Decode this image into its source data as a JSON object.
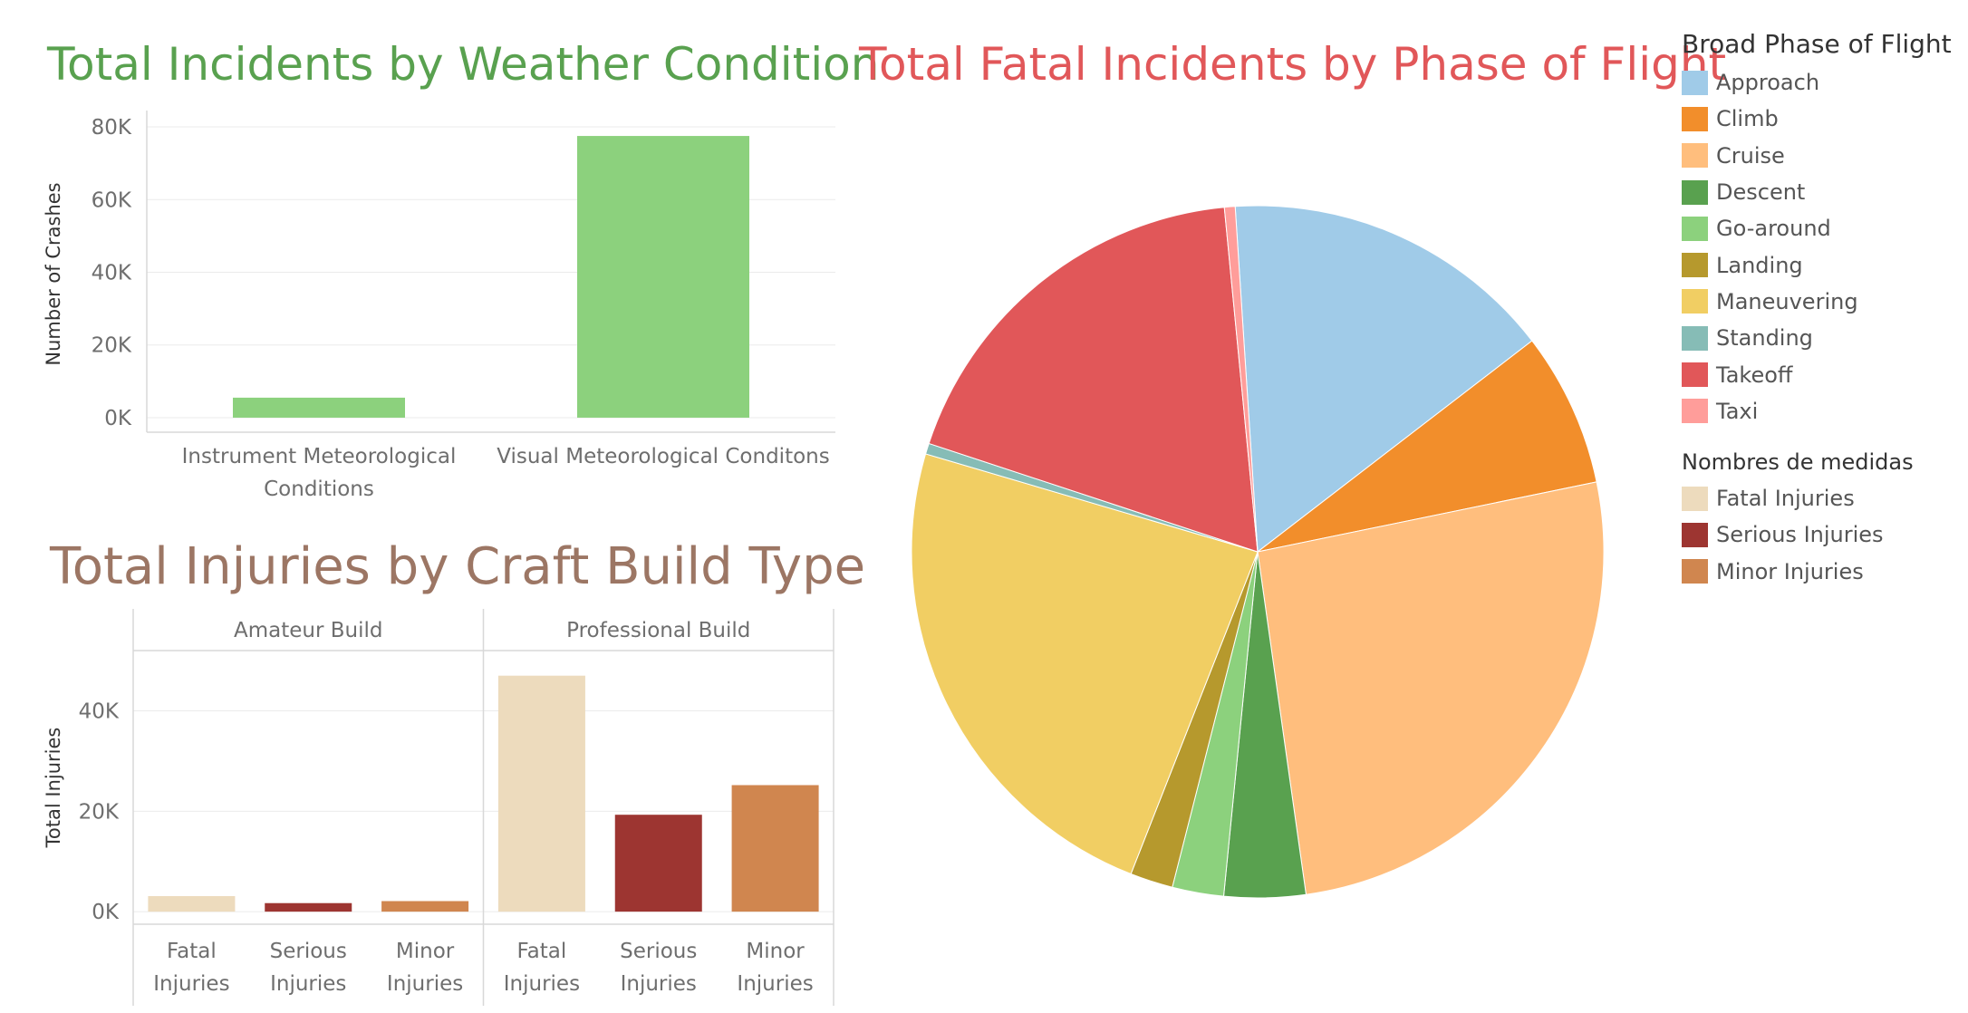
{
  "colors": {
    "weather_bar": "#8cd17d",
    "weather_title": "#59a14f",
    "injury_title": "#9c7664",
    "pie_title": "#e15759",
    "grid": "#ebebeb",
    "axis": "#d8d8d8"
  },
  "chart_data": [
    {
      "type": "bar",
      "title": "Total Incidents by Weather Condition",
      "xlabel": "",
      "ylabel": "Number of Crashes",
      "categories": [
        [
          "Instrument Meteorological",
          "Conditions"
        ],
        [
          "Visual Meteorological Conditons"
        ]
      ],
      "values": [
        5500,
        77500
      ],
      "ylim": [
        -4000,
        83000
      ],
      "yticks": [
        {
          "value": 0,
          "label": "0K"
        },
        {
          "value": 20000,
          "label": "20K"
        },
        {
          "value": 40000,
          "label": "40K"
        },
        {
          "value": 60000,
          "label": "60K"
        },
        {
          "value": 80000,
          "label": "80K"
        }
      ],
      "grid": true
    },
    {
      "type": "bar",
      "title": "Total Injuries by Craft Build Type",
      "ylabel": "Total Injuries",
      "panels": [
        {
          "name": "Amateur Build",
          "categories": [
            [
              "Fatal",
              "Injuries"
            ],
            [
              "Serious",
              "Injuries"
            ],
            [
              "Minor",
              "Injuries"
            ]
          ],
          "values": [
            3100,
            1700,
            2100
          ],
          "colors": [
            "#eddbbd",
            "#9d3531",
            "#d0864f"
          ]
        },
        {
          "name": "Professional Build",
          "categories": [
            [
              "Fatal",
              "Injuries"
            ],
            [
              "Serious",
              "Injuries"
            ],
            [
              "Minor",
              "Injuries"
            ]
          ],
          "values": [
            47000,
            19300,
            25200
          ],
          "colors": [
            "#eddbbd",
            "#9d3531",
            "#d0864f"
          ]
        }
      ],
      "ylim": [
        -2500,
        52000
      ],
      "yticks": [
        {
          "value": 0,
          "label": "0K"
        },
        {
          "value": 20000,
          "label": "20K"
        },
        {
          "value": 40000,
          "label": "40K"
        }
      ],
      "grid": true,
      "legend": {
        "title": "Nombres de medidas",
        "entries": [
          {
            "name": "Fatal Injuries",
            "color": "#eddbbd"
          },
          {
            "name": "Serious Injuries",
            "color": "#9d3531"
          },
          {
            "name": "Minor Injuries",
            "color": "#d0864f"
          }
        ]
      }
    },
    {
      "type": "pie",
      "title": "Total Fatal Incidents by Phase of Flight",
      "legend_title": "Broad Phase of Flight",
      "legend_position": "right",
      "slices": [
        {
          "name": "Approach",
          "share": 0.156,
          "color": "#a0cbe8"
        },
        {
          "name": "Climb",
          "share": 0.072,
          "color": "#f28e2b"
        },
        {
          "name": "Cruise",
          "share": 0.26,
          "color": "#ffbe7d"
        },
        {
          "name": "Descent",
          "share": 0.038,
          "color": "#59a14f"
        },
        {
          "name": "Go-around",
          "share": 0.024,
          "color": "#8cd17d"
        },
        {
          "name": "Landing",
          "share": 0.02,
          "color": "#b6992d"
        },
        {
          "name": "Maneuvering",
          "share": 0.236,
          "color": "#f1ce63"
        },
        {
          "name": "Standing",
          "share": 0.005,
          "color": "#86bcb6"
        },
        {
          "name": "Takeoff",
          "share": 0.184,
          "color": "#e15759"
        },
        {
          "name": "Taxi",
          "share": 0.005,
          "color": "#ff9d9a"
        }
      ]
    }
  ]
}
